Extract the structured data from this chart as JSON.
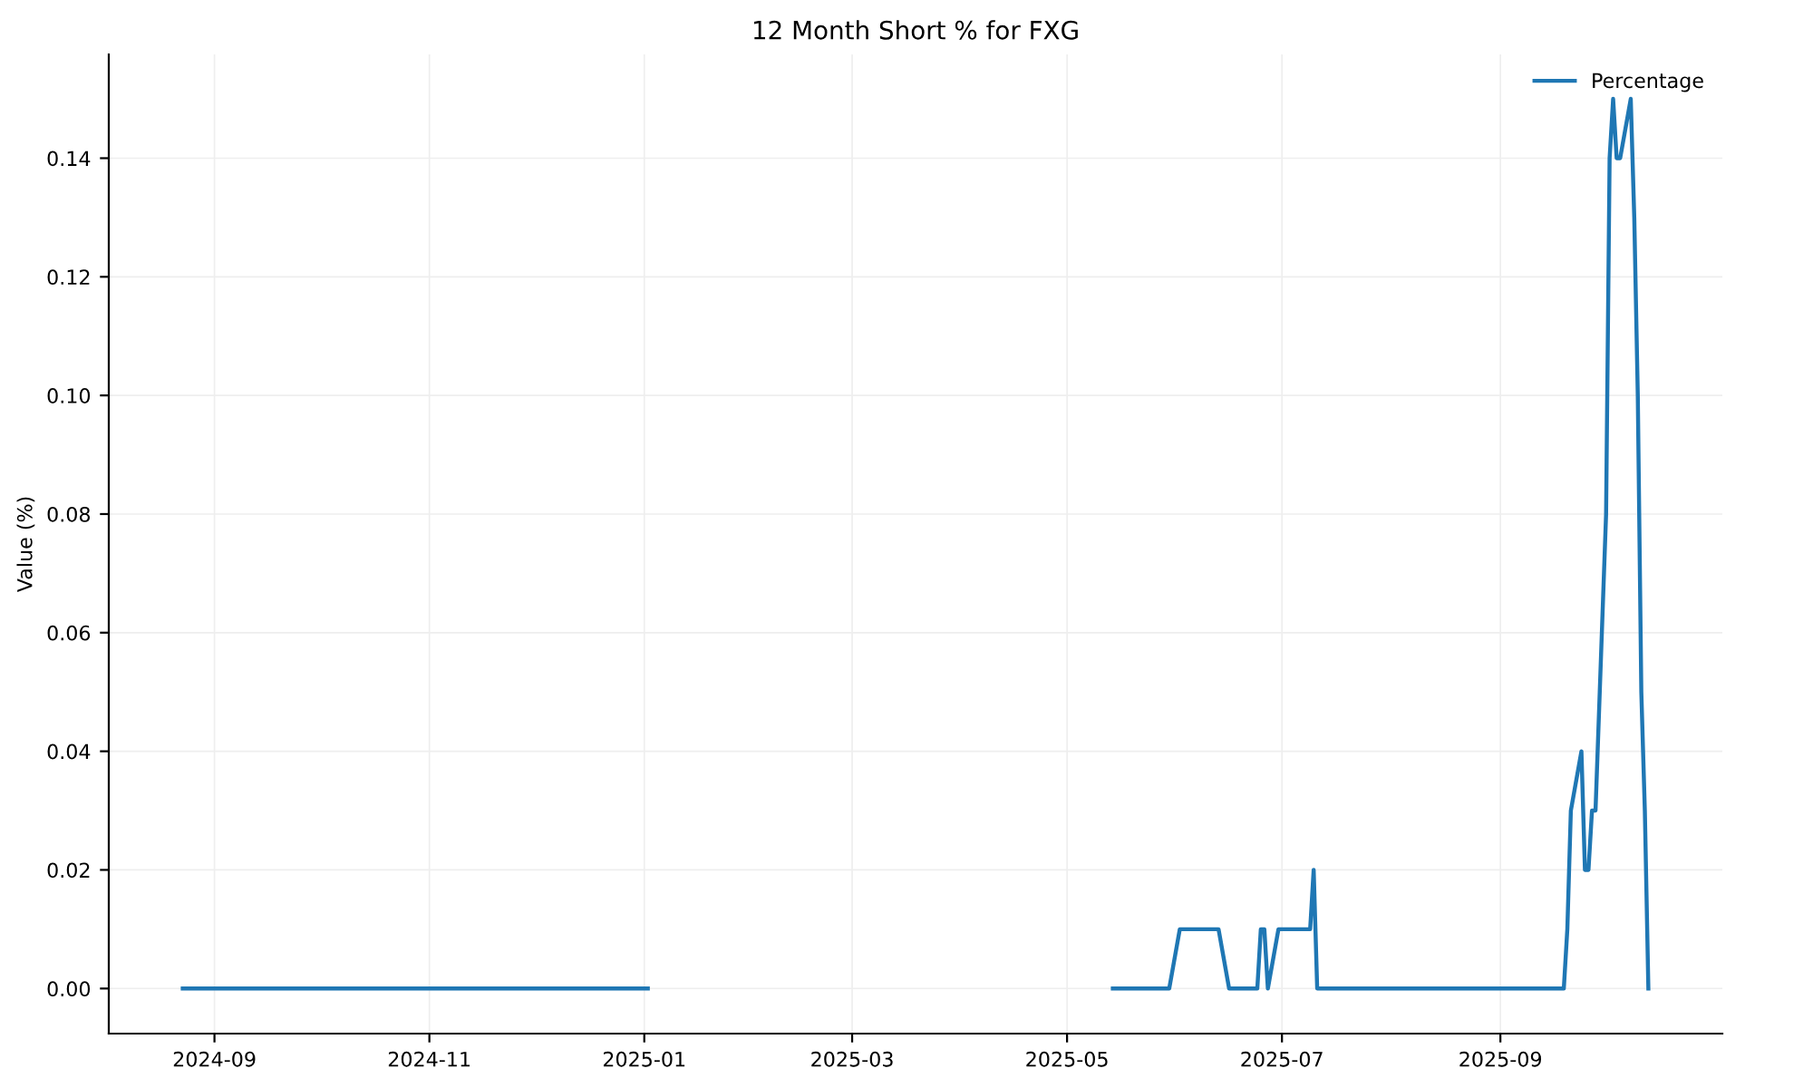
{
  "chart_data": {
    "type": "line",
    "title": "12 Month Short % for FXG",
    "ylabel": "Value (%)",
    "x": [
      "2024-08-23",
      "2025-01-02",
      "2025-03-01",
      "2025-05-14",
      "2025-05-30",
      "2025-06-02",
      "2025-06-13",
      "2025-06-16",
      "2025-06-24",
      "2025-06-25",
      "2025-06-26",
      "2025-06-27",
      "2025-06-30",
      "2025-07-09",
      "2025-07-10",
      "2025-07-11",
      "2025-09-19",
      "2025-09-20",
      "2025-09-21",
      "2025-09-24",
      "2025-09-25",
      "2025-09-26",
      "2025-09-27",
      "2025-09-28",
      "2025-10-01",
      "2025-10-02",
      "2025-10-03",
      "2025-10-04",
      "2025-10-05",
      "2025-10-08",
      "2025-10-09",
      "2025-10-10",
      "2025-10-11",
      "2025-10-12",
      "2025-10-13"
    ],
    "series": [
      {
        "name": "Percentage",
        "color": "#1f77b4",
        "values": [
          0,
          0,
          null,
          0,
          0,
          0.01,
          0.01,
          0,
          0,
          0.01,
          0.01,
          0,
          0.01,
          0.01,
          0.02,
          0,
          0,
          0.01,
          0.03,
          0.04,
          0.02,
          0.02,
          0.03,
          0.03,
          0.08,
          0.14,
          0.15,
          0.14,
          0.14,
          0.15,
          0.13,
          0.1,
          0.05,
          0.03,
          0
        ]
      }
    ],
    "xlim": [
      "2024-08-02",
      "2025-11-03"
    ],
    "xticks": [
      {
        "value": "2024-09-01",
        "label": "2024-09"
      },
      {
        "value": "2024-11-01",
        "label": "2024-11"
      },
      {
        "value": "2025-01-01",
        "label": "2025-01"
      },
      {
        "value": "2025-03-01",
        "label": "2025-03"
      },
      {
        "value": "2025-05-01",
        "label": "2025-05"
      },
      {
        "value": "2025-07-01",
        "label": "2025-07"
      },
      {
        "value": "2025-09-01",
        "label": "2025-09"
      }
    ],
    "ylim": [
      -0.0076,
      0.1575
    ],
    "yticks": [
      {
        "value": 0,
        "label": "0.00"
      },
      {
        "value": 0.02,
        "label": "0.02"
      },
      {
        "value": 0.04,
        "label": "0.04"
      },
      {
        "value": 0.06,
        "label": "0.06"
      },
      {
        "value": 0.08,
        "label": "0.08"
      },
      {
        "value": 0.1,
        "label": "0.10"
      },
      {
        "value": 0.12,
        "label": "0.12"
      },
      {
        "value": 0.14,
        "label": "0.14"
      }
    ],
    "grid": true,
    "legend": "top right",
    "marker": "none",
    "line_style": "solid"
  }
}
